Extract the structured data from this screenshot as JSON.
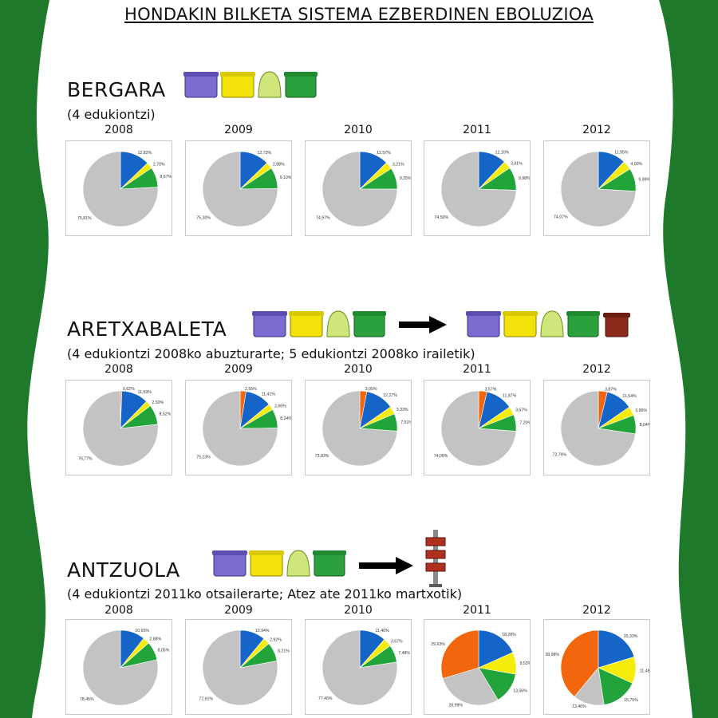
{
  "title": "HONDAKIN BILKETA SISTEMA EZBERDINEN EBOLUZIOA",
  "colors": {
    "blue": "#1565c8",
    "yellow": "#f6ec0c",
    "green": "#21a43a",
    "gray": "#c3c3c3",
    "orange": "#f2660e",
    "frame_green": "#1e7a2a"
  },
  "icons": [
    "purple-container-icon",
    "yellow-container-icon",
    "glass-igloo-icon",
    "green-container-icon",
    "brown-bin-icon",
    "door-to-door-post-icon",
    "arrow-icon"
  ],
  "sections": [
    {
      "town": "BERGARA",
      "subtitle": "(4 edukiontzi)",
      "chart_data": [
        {
          "type": "pie",
          "year": "2008",
          "slices": [
            {
              "color": "blue",
              "value": 12.82,
              "label": "12,82%"
            },
            {
              "color": "yellow",
              "value": 2.7,
              "label": "2,70%"
            },
            {
              "color": "green",
              "value": 8.67,
              "label": "8,67%"
            },
            {
              "color": "gray",
              "value": 75.81,
              "label": "75,81%"
            }
          ]
        },
        {
          "type": "pie",
          "year": "2009",
          "slices": [
            {
              "color": "blue",
              "value": 12.73,
              "label": "12,73%"
            },
            {
              "color": "yellow",
              "value": 2.88,
              "label": "2,88%"
            },
            {
              "color": "green",
              "value": 9.1,
              "label": "9,10%"
            },
            {
              "color": "gray",
              "value": 75.3,
              "label": "75,30%"
            }
          ]
        },
        {
          "type": "pie",
          "year": "2010",
          "slices": [
            {
              "color": "blue",
              "value": 12.57,
              "label": "12,57%"
            },
            {
              "color": "yellow",
              "value": 3.21,
              "label": "3,21%"
            },
            {
              "color": "green",
              "value": 9.25,
              "label": "9,25%"
            },
            {
              "color": "gray",
              "value": 74.97,
              "label": "74,97%"
            }
          ]
        },
        {
          "type": "pie",
          "year": "2011",
          "slices": [
            {
              "color": "blue",
              "value": 12.1,
              "label": "12,10%"
            },
            {
              "color": "yellow",
              "value": 3.41,
              "label": "3,41%"
            },
            {
              "color": "green",
              "value": 9.98,
              "label": "9,98%"
            },
            {
              "color": "gray",
              "value": 74.5,
              "label": "74,50%"
            }
          ]
        },
        {
          "type": "pie",
          "year": "2012",
          "slices": [
            {
              "color": "blue",
              "value": 11.95,
              "label": "11,95%"
            },
            {
              "color": "yellow",
              "value": 4.0,
              "label": "4,00%"
            },
            {
              "color": "green",
              "value": 9.99,
              "label": "9,99%"
            },
            {
              "color": "gray",
              "value": 74.07,
              "label": "74,07%"
            }
          ]
        }
      ]
    },
    {
      "town": "ARETXABALETA",
      "subtitle": "(4 edukiontzi 2008ko abuzturarte; 5 edukiontzi 2008ko irailetik)",
      "chart_data": [
        {
          "type": "pie",
          "year": "2008",
          "slices": [
            {
              "color": "orange",
              "value": 0.62,
              "label": "0,62%"
            },
            {
              "color": "blue",
              "value": 11.59,
              "label": "11,59%"
            },
            {
              "color": "yellow",
              "value": 2.5,
              "label": "2,50%"
            },
            {
              "color": "green",
              "value": 8.52,
              "label": "8,52%"
            },
            {
              "color": "gray",
              "value": 76.77,
              "label": "76,77%"
            }
          ]
        },
        {
          "type": "pie",
          "year": "2009",
          "slices": [
            {
              "color": "orange",
              "value": 2.55,
              "label": "2,55%"
            },
            {
              "color": "blue",
              "value": 11.41,
              "label": "11,41%"
            },
            {
              "color": "yellow",
              "value": 2.66,
              "label": "2,66%"
            },
            {
              "color": "green",
              "value": 8.24,
              "label": "8,24%"
            },
            {
              "color": "gray",
              "value": 75.13,
              "label": "75,13%"
            }
          ]
        },
        {
          "type": "pie",
          "year": "2010",
          "slices": [
            {
              "color": "orange",
              "value": 3.05,
              "label": "3,05%"
            },
            {
              "color": "blue",
              "value": 12.27,
              "label": "12,27%"
            },
            {
              "color": "yellow",
              "value": 3.33,
              "label": "3,33%"
            },
            {
              "color": "green",
              "value": 7.51,
              "label": "7,51%"
            },
            {
              "color": "gray",
              "value": 73.83,
              "label": "73,83%"
            }
          ]
        },
        {
          "type": "pie",
          "year": "2011",
          "slices": [
            {
              "color": "orange",
              "value": 3.57,
              "label": "3,57%"
            },
            {
              "color": "blue",
              "value": 11.87,
              "label": "11,87%"
            },
            {
              "color": "yellow",
              "value": 3.67,
              "label": "3,67%"
            },
            {
              "color": "green",
              "value": 7.2,
              "label": "7,20%"
            },
            {
              "color": "gray",
              "value": 74.09,
              "label": "74,09%"
            }
          ]
        },
        {
          "type": "pie",
          "year": "2012",
          "slices": [
            {
              "color": "orange",
              "value": 3.87,
              "label": "3,87%"
            },
            {
              "color": "blue",
              "value": 11.54,
              "label": "11,54%"
            },
            {
              "color": "yellow",
              "value": 3.96,
              "label": "3,96%"
            },
            {
              "color": "green",
              "value": 8.04,
              "label": "8,04%"
            },
            {
              "color": "gray",
              "value": 72.79,
              "label": "72,79%"
            }
          ]
        }
      ]
    },
    {
      "town": "ANTZUOLA",
      "subtitle": "(4 edukiontzi 2011ko otsailerarte; Atez ate 2011ko martxotik)",
      "chart_data": [
        {
          "type": "pie",
          "year": "2008",
          "slices": [
            {
              "color": "blue",
              "value": 10.65,
              "label": "10,65%"
            },
            {
              "color": "yellow",
              "value": 2.88,
              "label": "2,88%"
            },
            {
              "color": "green",
              "value": 8.05,
              "label": "8,05%"
            },
            {
              "color": "gray",
              "value": 78.45,
              "label": "78,45%"
            }
          ]
        },
        {
          "type": "pie",
          "year": "2009",
          "slices": [
            {
              "color": "blue",
              "value": 10.94,
              "label": "10,94%"
            },
            {
              "color": "yellow",
              "value": 2.92,
              "label": "2,92%"
            },
            {
              "color": "green",
              "value": 8.21,
              "label": "8,21%"
            },
            {
              "color": "gray",
              "value": 77.91,
              "label": "77,91%"
            }
          ]
        },
        {
          "type": "pie",
          "year": "2010",
          "slices": [
            {
              "color": "blue",
              "value": 11.4,
              "label": "11,40%"
            },
            {
              "color": "yellow",
              "value": 3.67,
              "label": "3,67%"
            },
            {
              "color": "green",
              "value": 7.48,
              "label": "7,48%"
            },
            {
              "color": "gray",
              "value": 77.45,
              "label": "77,45%"
            }
          ]
        },
        {
          "type": "pie",
          "year": "2011",
          "slices": [
            {
              "color": "blue",
              "value": 18.28,
              "label": "18,28%"
            },
            {
              "color": "yellow",
              "value": 9.53,
              "label": "9,53%"
            },
            {
              "color": "green",
              "value": 13.56,
              "label": "13,56%"
            },
            {
              "color": "gray",
              "value": 28.99,
              "label": "28,99%"
            },
            {
              "color": "orange",
              "value": 29.63,
              "label": "29,63%"
            }
          ]
        },
        {
          "type": "pie",
          "year": "2012",
          "slices": [
            {
              "color": "blue",
              "value": 20.33,
              "label": "20,33%"
            },
            {
              "color": "yellow",
              "value": 11.48,
              "label": "11,48%"
            },
            {
              "color": "green",
              "value": 15.75,
              "label": "15,75%"
            },
            {
              "color": "gray",
              "value": 13.46,
              "label": "13,46%"
            },
            {
              "color": "orange",
              "value": 38.98,
              "label": "38,98%"
            }
          ]
        }
      ]
    }
  ]
}
